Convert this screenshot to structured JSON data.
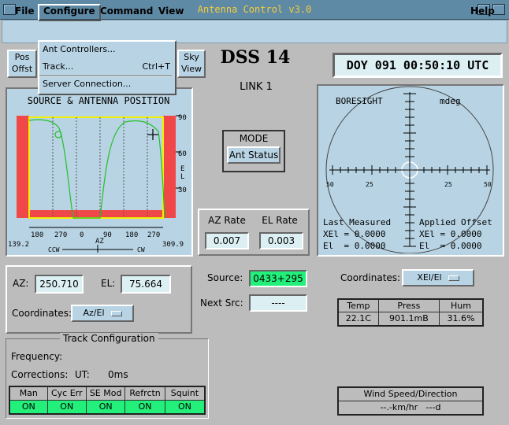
{
  "window": {
    "title": "Antenna Control v3.0"
  },
  "menubar": {
    "file": "File",
    "configure": "Configure",
    "command": "Command",
    "view": "View",
    "help": "Help"
  },
  "configure_menu": {
    "items": [
      {
        "label": "Ant Controllers...",
        "accel": ""
      },
      {
        "label": "Track...",
        "accel": "Ctrl+T"
      },
      {
        "label": "Server Connection...",
        "accel": ""
      }
    ]
  },
  "toolbar": {
    "pos_offset_l1": "Pos",
    "pos_offset_l2": "Offst",
    "sky_view_l1": "Sky",
    "sky_view_l2": "View"
  },
  "station": {
    "name": "DSS 14",
    "link": "LINK 1"
  },
  "clock": {
    "text": "DOY 091 00:50:10 UTC"
  },
  "source_panel": {
    "title": "SOURCE & ANTENNA POSITION",
    "az_ticks": [
      "180",
      "270",
      "0",
      "90",
      "180",
      "270"
    ],
    "az_label": "AZ",
    "el_ticks": [
      "90",
      "60",
      "30"
    ],
    "el_label": "E\nL",
    "left_limit": "139.2",
    "right_limit": "309.9",
    "ccw": "CCW",
    "cw": "CW"
  },
  "mode": {
    "title": "MODE",
    "button": "Ant Status"
  },
  "rates": {
    "az_label": "AZ Rate",
    "el_label": "EL Rate",
    "az_value": "0.007",
    "el_value": "0.003"
  },
  "boresight": {
    "title": "BORESIGHT",
    "units": "mdeg",
    "h_ticks": [
      "50",
      "25",
      "25",
      "50"
    ],
    "last_measured": "Last Measured",
    "applied_offset": "Applied Offset",
    "lm_xel": "XEl = 0.0000",
    "lm_el": "El  = 0.0000",
    "ao_xel": "XEl = 0.0000",
    "ao_el": "El  = 0.0000"
  },
  "position": {
    "az_label": "AZ:",
    "az_value": "250.710",
    "el_label": "EL:",
    "el_value": "75.664",
    "coord_label": "Coordinates:",
    "coord_value": "Az/El"
  },
  "source_info": {
    "source_label": "Source:",
    "source_value": "0433+295",
    "next_label": "Next Src:",
    "next_value": "----"
  },
  "coord2": {
    "label": "Coordinates:",
    "value": "XEl/El"
  },
  "weather": {
    "headers": [
      "Temp",
      "Press",
      "Hum"
    ],
    "values": [
      "22.1C",
      "901.1mB",
      "31.6%"
    ]
  },
  "track_config": {
    "title": "Track Configuration",
    "frequency_label": "Frequency:",
    "corrections_label": "Corrections:",
    "ut_label": "UT:",
    "ut_value": "0ms",
    "headers": [
      "Man",
      "Cyc Err",
      "SE Mod",
      "Refrctn",
      "Squint"
    ],
    "values": [
      "ON",
      "ON",
      "ON",
      "ON",
      "ON"
    ]
  },
  "wind": {
    "title": "Wind Speed/Direction",
    "value": "--.-km/hr   ---d"
  },
  "colors": {
    "accent_green": "#22f07a",
    "limit_red": "#f04848",
    "plot_yellow": "#f0f000",
    "title_gold": "#f4cc3a"
  }
}
